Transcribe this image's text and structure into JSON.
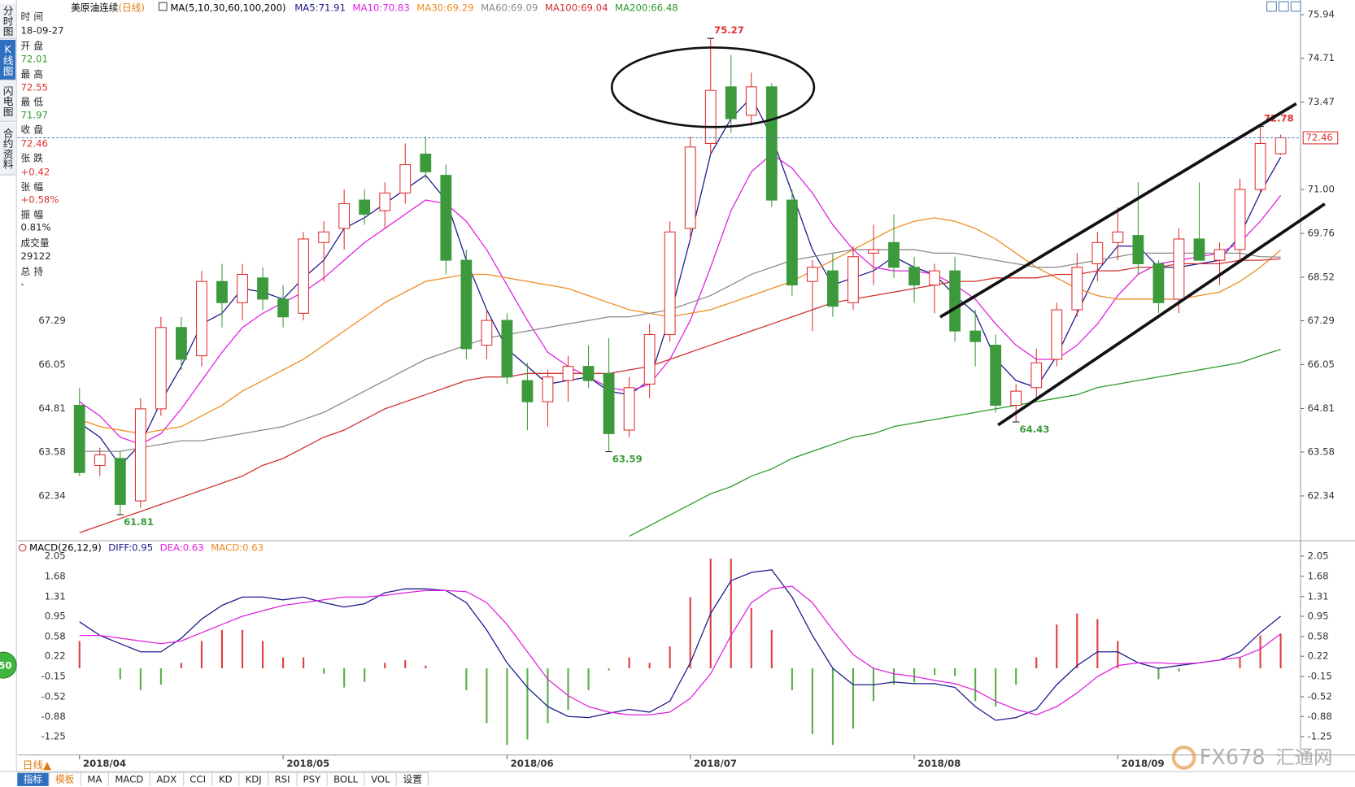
{
  "ui": {
    "side_tabs": [
      "分时图",
      "K线图",
      "闪电图",
      "合约资料"
    ],
    "info": {
      "time_label": "时间",
      "time": "18-09-27",
      "open_label": "开盘",
      "high_label": "最高",
      "low_label": "最低",
      "close_label": "收盘",
      "change_label": "张跌",
      "change": "+0.42",
      "pct_label": "张幅",
      "pct": "+0.58%",
      "amp_label": "振幅",
      "amp": "0.81%",
      "vol_label": "成交量",
      "vol": "29122",
      "oi_label": "总持",
      "oi": "-"
    },
    "period_button": "日线▲",
    "tabs": [
      "指标",
      "模板",
      "MA",
      "MACD",
      "ADX",
      "CCI",
      "KD",
      "KDJ",
      "RSI",
      "PSY",
      "BOLL",
      "VOL",
      "设置"
    ],
    "watermark": [
      "FX678",
      "汇通网"
    ],
    "badge": "50"
  },
  "chart_data": [
    {
      "type": "candlestick",
      "title": "美原油连续",
      "period": "(日线)",
      "indicator": "MA(5,10,30,60,100,200)",
      "up_color": "#e03030",
      "down_color": "#3c9a3c",
      "categories": [
        "2018/04",
        null,
        null,
        null,
        null,
        null,
        null,
        null,
        null,
        null,
        "2018/05",
        null,
        null,
        null,
        null,
        null,
        null,
        null,
        null,
        null,
        null,
        "2018/06",
        null,
        null,
        null,
        null,
        null,
        null,
        null,
        null,
        "2018/07",
        null,
        null,
        null,
        null,
        null,
        null,
        null,
        null,
        null,
        null,
        "2018/08",
        null,
        null,
        null,
        null,
        null,
        null,
        null,
        null,
        null,
        "2018/09",
        null,
        null,
        null,
        null,
        null,
        null,
        null,
        null
      ],
      "open": [
        64.9,
        63.2,
        63.4,
        62.2,
        64.8,
        67.1,
        66.3,
        68.4,
        67.8,
        68.5,
        67.9,
        67.5,
        69.5,
        69.9,
        70.7,
        70.4,
        70.9,
        72.0,
        71.4,
        69.0,
        66.6,
        67.3,
        65.6,
        65.0,
        65.6,
        66.0,
        65.8,
        64.2,
        65.5,
        66.9,
        69.9,
        72.3,
        73.9,
        73.1,
        73.9,
        70.7,
        68.4,
        68.7,
        67.8,
        69.2,
        69.5,
        68.8,
        68.3,
        68.7,
        67.0,
        66.6,
        64.9,
        65.4,
        66.2,
        67.6,
        68.9,
        69.5,
        69.7,
        68.9,
        67.9,
        69.6,
        69.0,
        69.3,
        71.0,
        72.01
      ],
      "high": [
        65.4,
        63.7,
        63.6,
        65.1,
        67.4,
        67.4,
        68.7,
        68.9,
        68.9,
        68.8,
        68.3,
        69.8,
        70.1,
        71.0,
        71.0,
        71.2,
        72.3,
        72.5,
        71.7,
        69.3,
        67.6,
        67.5,
        66.1,
        65.9,
        66.3,
        66.6,
        66.8,
        65.7,
        67.2,
        70.1,
        72.5,
        75.27,
        74.8,
        74.3,
        74.0,
        71.0,
        69.0,
        69.2,
        69.4,
        70.0,
        70.3,
        69.1,
        68.9,
        69.1,
        67.6,
        66.9,
        65.5,
        66.5,
        67.8,
        69.2,
        69.8,
        70.5,
        71.2,
        69.0,
        69.9,
        71.2,
        69.5,
        71.3,
        72.78,
        72.55
      ],
      "low": [
        62.9,
        62.9,
        61.81,
        62.0,
        64.6,
        65.9,
        66.0,
        67.1,
        67.3,
        67.6,
        67.1,
        67.3,
        68.4,
        69.3,
        70.0,
        69.9,
        70.6,
        71.3,
        68.6,
        66.2,
        66.2,
        65.5,
        64.2,
        64.3,
        65.0,
        65.4,
        63.59,
        64.0,
        65.1,
        66.7,
        69.6,
        72.0,
        72.6,
        72.8,
        70.5,
        68.0,
        67.0,
        67.4,
        67.6,
        68.3,
        68.5,
        67.8,
        67.5,
        66.7,
        66.0,
        64.7,
        64.43,
        65.1,
        66.0,
        67.4,
        68.4,
        69.0,
        68.6,
        67.5,
        67.5,
        69.0,
        68.3,
        69.0,
        70.9,
        71.97
      ],
      "close": [
        63.0,
        63.5,
        62.1,
        64.8,
        67.1,
        66.2,
        68.4,
        67.8,
        68.6,
        67.9,
        67.4,
        69.6,
        69.8,
        70.6,
        70.3,
        70.9,
        71.7,
        71.5,
        69.0,
        66.5,
        67.3,
        65.7,
        65.0,
        65.7,
        66.0,
        65.6,
        64.1,
        65.4,
        66.9,
        69.8,
        72.2,
        73.8,
        73.0,
        73.9,
        70.7,
        68.3,
        68.8,
        67.7,
        69.1,
        69.3,
        68.8,
        68.3,
        68.7,
        67.0,
        66.7,
        64.9,
        65.3,
        66.1,
        67.6,
        68.8,
        69.5,
        69.8,
        68.9,
        67.8,
        69.6,
        69.0,
        69.3,
        71.0,
        72.3,
        72.46
      ],
      "series": [
        {
          "name": "MA5:71.91",
          "color": "#1a1a8c",
          "values": [
            64.4,
            64.0,
            63.2,
            63.8,
            65.0,
            66.0,
            67.2,
            67.5,
            68.2,
            68.1,
            67.9,
            68.5,
            69.0,
            69.9,
            70.2,
            70.6,
            71.0,
            71.4,
            70.7,
            69.0,
            67.6,
            66.5,
            66.0,
            65.5,
            65.6,
            65.7,
            65.3,
            65.2,
            65.6,
            67.4,
            69.6,
            72.0,
            73.0,
            73.6,
            72.5,
            70.9,
            69.3,
            68.3,
            68.5,
            68.7,
            69.1,
            68.8,
            68.6,
            68.0,
            67.5,
            66.2,
            65.6,
            65.4,
            66.3,
            67.5,
            68.7,
            69.4,
            69.4,
            68.8,
            68.8,
            68.9,
            69.0,
            69.7,
            70.9,
            71.91
          ]
        },
        {
          "name": "MA10:70.83",
          "color": "#e020e0",
          "values": [
            65.0,
            64.6,
            64.0,
            63.8,
            64.1,
            64.8,
            65.6,
            66.4,
            67.1,
            67.5,
            67.8,
            68.1,
            68.5,
            69.0,
            69.5,
            69.9,
            70.3,
            70.7,
            70.6,
            70.1,
            69.3,
            68.3,
            67.3,
            66.4,
            66.0,
            65.7,
            65.4,
            65.3,
            65.5,
            66.2,
            67.3,
            68.8,
            70.4,
            71.5,
            72.0,
            71.6,
            70.9,
            70.0,
            69.3,
            68.8,
            68.7,
            68.7,
            68.6,
            68.3,
            67.9,
            67.2,
            66.6,
            66.2,
            66.2,
            66.6,
            67.2,
            68.0,
            68.6,
            68.9,
            69.0,
            69.1,
            69.2,
            69.5,
            70.1,
            70.83
          ]
        },
        {
          "name": "MA30:69.29",
          "color": "#f08a20",
          "values": [
            64.5,
            64.3,
            64.2,
            64.1,
            64.2,
            64.3,
            64.6,
            64.9,
            65.3,
            65.6,
            65.9,
            66.2,
            66.6,
            67.0,
            67.4,
            67.8,
            68.1,
            68.4,
            68.5,
            68.6,
            68.6,
            68.5,
            68.4,
            68.3,
            68.2,
            68.0,
            67.8,
            67.6,
            67.5,
            67.4,
            67.5,
            67.6,
            67.8,
            68.0,
            68.2,
            68.4,
            68.7,
            69.0,
            69.3,
            69.6,
            69.9,
            70.1,
            70.2,
            70.1,
            69.9,
            69.6,
            69.2,
            68.8,
            68.5,
            68.2,
            68.0,
            67.9,
            67.9,
            67.9,
            67.9,
            68.0,
            68.1,
            68.4,
            68.8,
            69.29
          ]
        },
        {
          "name": "MA60:69.09",
          "color": "#8a8a8a",
          "values": [
            63.6,
            63.6,
            63.6,
            63.7,
            63.8,
            63.9,
            63.9,
            64.0,
            64.1,
            64.2,
            64.3,
            64.5,
            64.7,
            65.0,
            65.3,
            65.6,
            65.9,
            66.2,
            66.4,
            66.6,
            66.8,
            66.9,
            67.0,
            67.1,
            67.2,
            67.3,
            67.4,
            67.4,
            67.5,
            67.6,
            67.8,
            68.0,
            68.3,
            68.6,
            68.8,
            69.0,
            69.1,
            69.2,
            69.3,
            69.3,
            69.3,
            69.3,
            69.2,
            69.2,
            69.1,
            69.0,
            68.9,
            68.8,
            68.8,
            68.9,
            69.0,
            69.1,
            69.2,
            69.2,
            69.2,
            69.2,
            69.2,
            69.2,
            69.1,
            69.09
          ]
        },
        {
          "name": "MA100:69.04",
          "color": "#d03030",
          "values": [
            61.3,
            61.5,
            61.7,
            61.9,
            62.1,
            62.3,
            62.5,
            62.7,
            62.9,
            63.2,
            63.4,
            63.7,
            64.0,
            64.2,
            64.5,
            64.8,
            65.0,
            65.2,
            65.4,
            65.6,
            65.7,
            65.7,
            65.8,
            65.8,
            65.8,
            65.8,
            65.8,
            65.9,
            66.0,
            66.2,
            66.4,
            66.6,
            66.8,
            67.0,
            67.2,
            67.4,
            67.6,
            67.8,
            67.9,
            68.0,
            68.1,
            68.2,
            68.3,
            68.4,
            68.4,
            68.5,
            68.5,
            68.5,
            68.6,
            68.6,
            68.7,
            68.7,
            68.8,
            68.8,
            68.9,
            68.9,
            68.9,
            69.0,
            69.0,
            69.04
          ]
        },
        {
          "name": "MA200:66.48",
          "color": "#2a9a2a",
          "values": [
            null,
            null,
            null,
            null,
            null,
            null,
            null,
            null,
            null,
            null,
            null,
            null,
            null,
            null,
            null,
            null,
            null,
            null,
            null,
            null,
            null,
            null,
            null,
            null,
            null,
            null,
            null,
            61.2,
            61.5,
            61.8,
            62.1,
            62.4,
            62.6,
            62.9,
            63.1,
            63.4,
            63.6,
            63.8,
            64.0,
            64.1,
            64.3,
            64.4,
            64.5,
            64.6,
            64.7,
            64.8,
            64.9,
            65.0,
            65.1,
            65.2,
            65.4,
            65.5,
            65.6,
            65.7,
            65.8,
            65.9,
            66.0,
            66.1,
            66.3,
            66.48
          ]
        }
      ],
      "ylim": [
        61.17,
        76.11
      ],
      "yticks": [
        75.94,
        74.71,
        73.47,
        {
          "value": 71,
          "label": "71.00"
        },
        69.76,
        68.52,
        67.29,
        66.05,
        64.81,
        63.58,
        62.34
      ],
      "left_yticks": [
        67.29,
        66.05,
        64.81,
        63.58,
        62.34
      ],
      "grid": false
    },
    {
      "type": "macd",
      "title": "MACD(26,12,9)",
      "series": [
        {
          "name": "DIFF:0.95",
          "color": "#1a1a8c",
          "values": [
            0.85,
            0.6,
            0.45,
            0.3,
            0.3,
            0.55,
            0.9,
            1.15,
            1.3,
            1.3,
            1.25,
            1.3,
            1.2,
            1.12,
            1.18,
            1.38,
            1.45,
            1.45,
            1.42,
            1.2,
            0.7,
            0.1,
            -0.35,
            -0.7,
            -0.88,
            -0.9,
            -0.82,
            -0.75,
            -0.8,
            -0.6,
            0.1,
            1.0,
            1.6,
            1.75,
            1.8,
            1.3,
            0.6,
            0.0,
            -0.3,
            -0.3,
            -0.25,
            -0.28,
            -0.28,
            -0.35,
            -0.7,
            -0.95,
            -0.9,
            -0.75,
            -0.3,
            0.05,
            0.3,
            0.3,
            0.1,
            0.0,
            0.05,
            0.1,
            0.15,
            0.3,
            0.65,
            0.95
          ]
        },
        {
          "name": "DEA:0.63",
          "color": "#e020e0",
          "values": [
            0.6,
            0.6,
            0.55,
            0.5,
            0.45,
            0.5,
            0.65,
            0.8,
            0.95,
            1.05,
            1.15,
            1.2,
            1.25,
            1.3,
            1.3,
            1.33,
            1.38,
            1.42,
            1.42,
            1.4,
            1.2,
            0.8,
            0.3,
            -0.2,
            -0.5,
            -0.7,
            -0.8,
            -0.85,
            -0.85,
            -0.8,
            -0.55,
            -0.1,
            0.6,
            1.2,
            1.45,
            1.5,
            1.2,
            0.7,
            0.25,
            0.0,
            -0.1,
            -0.15,
            -0.22,
            -0.28,
            -0.4,
            -0.6,
            -0.75,
            -0.85,
            -0.7,
            -0.45,
            -0.15,
            0.05,
            0.1,
            0.1,
            0.08,
            0.1,
            0.15,
            0.2,
            0.35,
            0.63
          ]
        }
      ],
      "histogram": {
        "name": "MACD:0.63",
        "color": "#f08a20",
        "up_color": "#e04040",
        "down_color": "#5aae4a",
        "values": [
          0.5,
          0.0,
          -0.2,
          -0.4,
          -0.3,
          0.1,
          0.5,
          0.7,
          0.7,
          0.5,
          0.2,
          0.2,
          -0.1,
          -0.35,
          -0.25,
          0.1,
          0.15,
          0.05,
          0.0,
          -0.4,
          -1.0,
          -1.4,
          -1.3,
          -1.0,
          -0.76,
          -0.4,
          -0.04,
          0.2,
          0.1,
          0.4,
          1.3,
          2.0,
          2.0,
          1.1,
          0.7,
          -0.4,
          -1.2,
          -1.4,
          -1.1,
          -0.6,
          -0.3,
          -0.26,
          -0.12,
          -0.14,
          -0.6,
          -0.7,
          -0.3,
          0.2,
          0.8,
          1.0,
          0.9,
          0.5,
          0.0,
          -0.2,
          -0.06,
          0.0,
          0.0,
          0.2,
          0.6,
          0.63
        ]
      },
      "ylim": [
        -1.52,
        2.14
      ],
      "yticks": [
        2.05,
        1.68,
        1.31,
        0.95,
        0.58,
        0.22,
        -0.15,
        -0.52,
        -0.88,
        -1.25
      ],
      "grid": false
    }
  ]
}
